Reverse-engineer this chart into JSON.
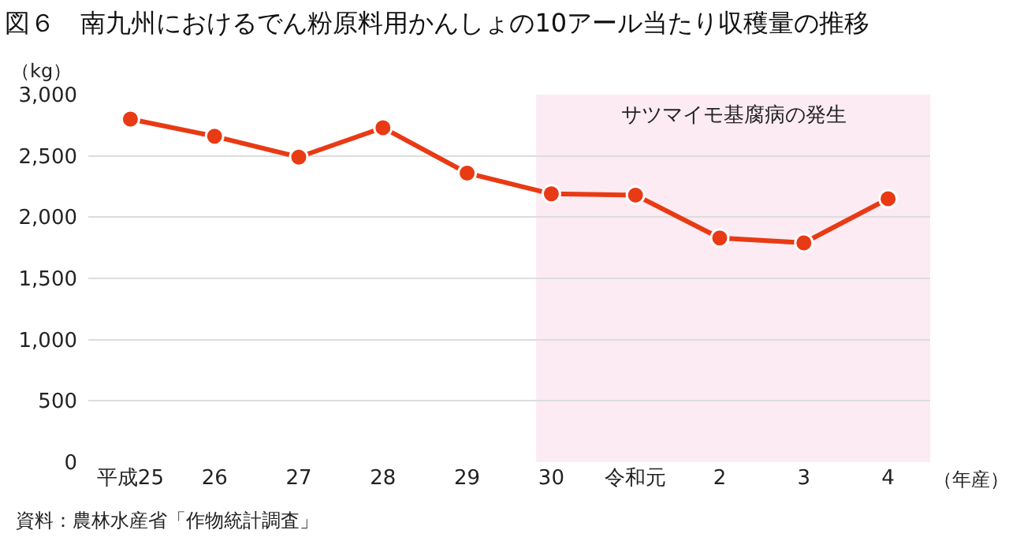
{
  "chart_data": {
    "type": "line",
    "title": "図６　南九州におけるでん粉原料用かんしょの10アール当たり収穫量の推移",
    "ylabel": "（kg）",
    "xlabel": "（年産）",
    "categories": [
      "平成25",
      "26",
      "27",
      "28",
      "29",
      "30",
      "令和元",
      "2",
      "3",
      "4"
    ],
    "series": [
      {
        "color": "#e83a14",
        "values": [
          2800,
          2660,
          2490,
          2730,
          2360,
          2190,
          2180,
          1830,
          1790,
          2150
        ]
      }
    ],
    "ylim": [
      0,
      3000
    ],
    "yticks": [
      0,
      {
        "value": 500,
        "label": "500"
      },
      {
        "value": 1000,
        "label": "1,000"
      },
      {
        "value": 1500,
        "label": "1,500"
      },
      {
        "value": 2000,
        "label": "2,000"
      },
      {
        "value": 2500,
        "label": "2,500"
      },
      {
        "value": 3000,
        "label": "3,000"
      }
    ],
    "bands": [
      {
        "axis": "x",
        "from": "30",
        "to": "4",
        "label": "サツマイモ基腐病の発生",
        "color": "#fcebf3"
      }
    ],
    "annotations": [
      "資料：農林水産省「作物統計調査」"
    ],
    "grid": "y",
    "marker": "circle",
    "line_style": "solid"
  }
}
